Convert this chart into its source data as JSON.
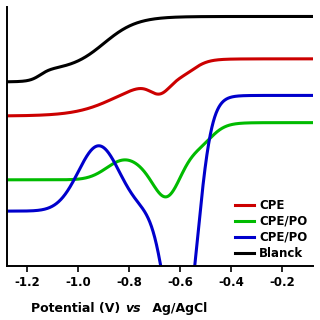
{
  "xlabel_normal": "Potential (V) ",
  "xlabel_italic": "vs",
  "xlabel_end": " Ag/AgCl",
  "xlim": [
    -1.28,
    -0.08
  ],
  "ylim": [
    -1.05,
    0.85
  ],
  "x_ticks": [
    -1.2,
    -1.0,
    -0.8,
    -0.6,
    -0.4,
    -0.2
  ],
  "legend": [
    "CPE",
    "CPE/PO",
    "CPE/PO",
    "Blanck"
  ],
  "colors": {
    "CPE": "#cc0000",
    "CPE_PO_green": "#00bb00",
    "CPE_PO_blue": "#0000cc",
    "Blanck": "#000000"
  },
  "linewidth": 2.2
}
